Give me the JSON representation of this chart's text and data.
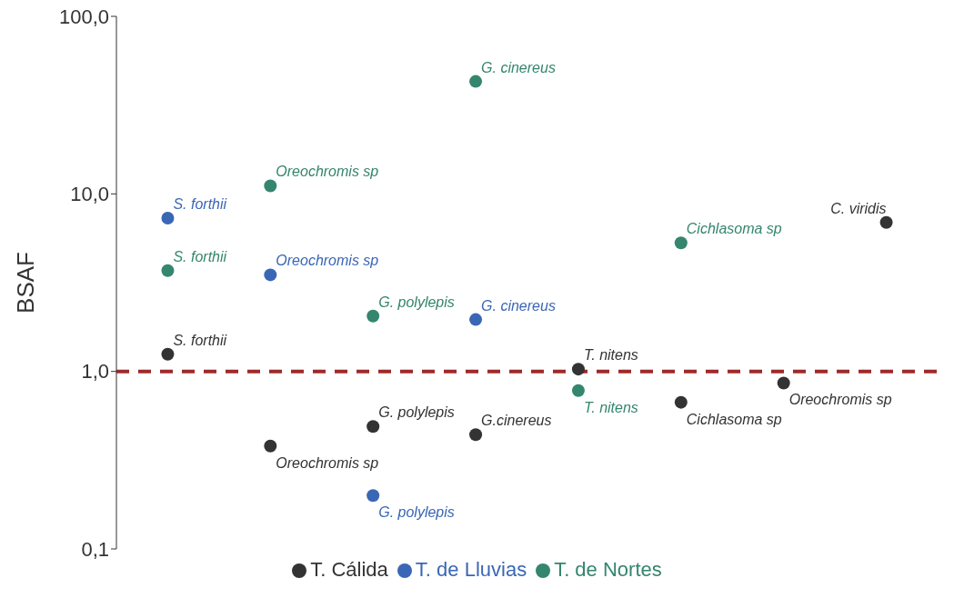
{
  "chart_data": {
    "type": "scatter",
    "ylabel": "BSAF",
    "categories": [
      null,
      null,
      null,
      null,
      null,
      null,
      null,
      null
    ],
    "log": "y",
    "ylim": [
      0.1,
      100
    ],
    "yticks": [
      {
        "value": 0.1,
        "label": "0,1"
      },
      {
        "value": 1,
        "label": "1,0"
      },
      {
        "value": 10,
        "label": "10,0"
      },
      {
        "value": 100,
        "label": "100,0"
      }
    ],
    "tick_labels": "y",
    "legend": "bottom",
    "marker": "circle",
    "ref_lines": [
      {
        "axis": "y",
        "value": 1,
        "color": "#9e2a2b",
        "line_style": "dashed"
      }
    ],
    "series": [
      {
        "name": "T. Cálida",
        "color": "#333333",
        "values": [
          1.25,
          0.38,
          0.49,
          0.44,
          1.03,
          0.67,
          0.86,
          6.9
        ],
        "value_labels": [
          "S. forthii",
          "Oreochromis sp",
          "G. polylepis",
          "G.cinereus",
          "T. nitens",
          "Cichlasoma sp",
          "Oreochromis sp",
          "C. viridis"
        ]
      },
      {
        "name": "T. de Lluvias",
        "color": "#3a67b5",
        "values": [
          7.3,
          3.5,
          0.2,
          1.96,
          null,
          null,
          null,
          null
        ],
        "value_labels": [
          "S. forthii",
          "Oreochromis sp",
          "G. polylepis",
          "G. cinereus",
          null,
          null,
          null,
          null
        ]
      },
      {
        "name": "T. de Nortes",
        "color": "#35866e",
        "values": [
          3.7,
          11.1,
          2.05,
          43,
          0.78,
          5.3,
          null,
          null
        ],
        "value_labels": [
          "S. forthii",
          "Oreochromis sp",
          "G. polylepis",
          "G. cinereus",
          "T. nitens",
          "Cichlasoma sp",
          null,
          null
        ]
      }
    ]
  }
}
